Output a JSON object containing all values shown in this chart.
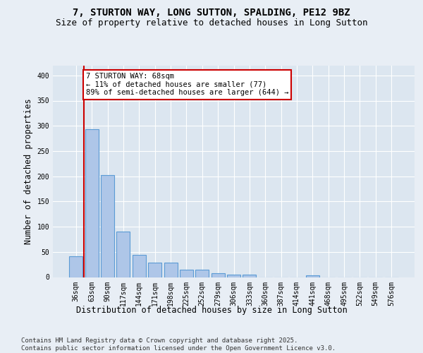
{
  "title": "7, STURTON WAY, LONG SUTTON, SPALDING, PE12 9BZ",
  "subtitle": "Size of property relative to detached houses in Long Sutton",
  "xlabel": "Distribution of detached houses by size in Long Sutton",
  "ylabel": "Number of detached properties",
  "footer_line1": "Contains HM Land Registry data © Crown copyright and database right 2025.",
  "footer_line2": "Contains public sector information licensed under the Open Government Licence v3.0.",
  "categories": [
    "36sqm",
    "63sqm",
    "90sqm",
    "117sqm",
    "144sqm",
    "171sqm",
    "198sqm",
    "225sqm",
    "252sqm",
    "279sqm",
    "306sqm",
    "333sqm",
    "360sqm",
    "387sqm",
    "414sqm",
    "441sqm",
    "468sqm",
    "495sqm",
    "522sqm",
    "549sqm",
    "576sqm"
  ],
  "values": [
    41,
    293,
    203,
    90,
    44,
    29,
    29,
    15,
    15,
    8,
    5,
    5,
    0,
    0,
    0,
    4,
    0,
    0,
    0,
    0,
    0
  ],
  "bar_color": "#aec6e8",
  "bar_edge_color": "#5b9bd5",
  "red_line_x": 0.5,
  "red_line_color": "#cc0000",
  "annotation_text": "7 STURTON WAY: 68sqm\n← 11% of detached houses are smaller (77)\n89% of semi-detached houses are larger (644) →",
  "annotation_box_facecolor": "#ffffff",
  "annotation_box_edgecolor": "#cc0000",
  "background_color": "#e8eef5",
  "plot_bg_color": "#dce6f0",
  "ylim": [
    0,
    420
  ],
  "yticks": [
    0,
    50,
    100,
    150,
    200,
    250,
    300,
    350,
    400
  ],
  "grid_color": "#ffffff",
  "title_fontsize": 10,
  "subtitle_fontsize": 9,
  "axis_label_fontsize": 8.5,
  "tick_fontsize": 7,
  "annot_fontsize": 7.5,
  "footer_fontsize": 6.5
}
